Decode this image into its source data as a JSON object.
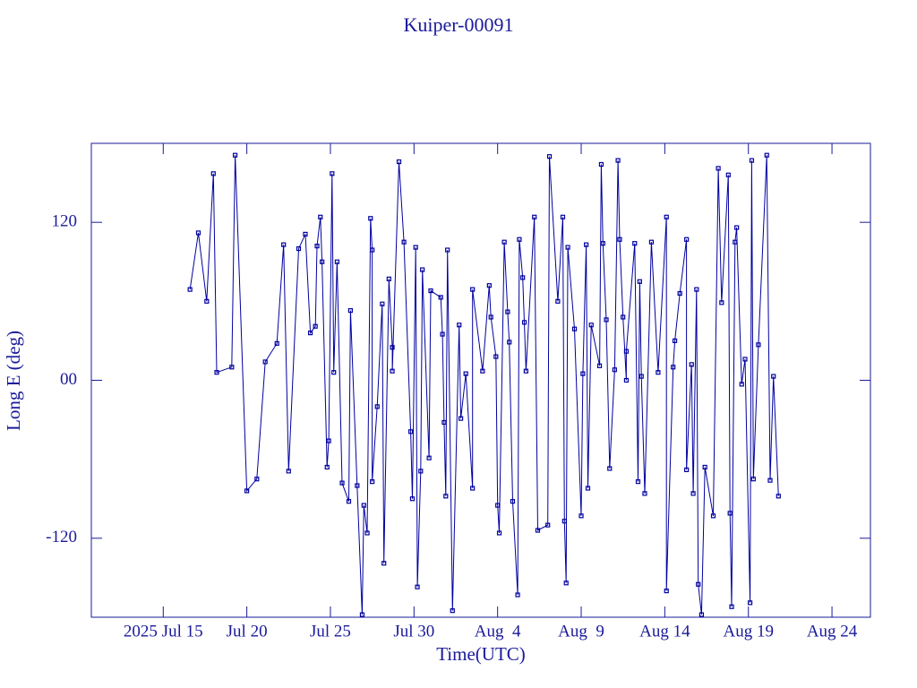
{
  "chart_data": {
    "type": "line",
    "title": "Kuiper-00091",
    "xlabel": "Time(UTC)",
    "ylabel": "Long E (deg)",
    "color": "#0000a0",
    "markers": true,
    "xlim": [
      10.7,
      57.3
    ],
    "xticks": [
      {
        "value": 15,
        "label": "2025 Jul 15"
      },
      {
        "value": 20,
        "label": "Jul 20"
      },
      {
        "value": 25,
        "label": "Jul 25"
      },
      {
        "value": 30,
        "label": "Jul 30"
      },
      {
        "value": 35,
        "label": "Aug  4"
      },
      {
        "value": 40,
        "label": "Aug  9"
      },
      {
        "value": 45,
        "label": "Aug 14"
      },
      {
        "value": 50,
        "label": "Aug 19"
      },
      {
        "value": 55,
        "label": "Aug 24"
      }
    ],
    "ylim": [
      -180,
      180
    ],
    "yticks": [
      -120,
      {
        "value": 0,
        "label": "00"
      },
      120
    ],
    "x": [
      16.6,
      17.1,
      17.6,
      18.0,
      18.2,
      19.1,
      19.3,
      20.0,
      20.6,
      21.1,
      21.8,
      22.2,
      22.5,
      23.1,
      23.5,
      23.8,
      24.1,
      24.2,
      24.4,
      24.5,
      24.8,
      24.9,
      25.1,
      25.2,
      25.4,
      25.7,
      26.1,
      26.2,
      26.6,
      26.9,
      27.0,
      27.2,
      27.4,
      27.5,
      27.5,
      27.8,
      28.1,
      28.2,
      28.5,
      28.7,
      28.7,
      29.1,
      29.4,
      29.8,
      29.9,
      30.1,
      30.2,
      30.4,
      30.5,
      30.9,
      31.0,
      31.6,
      31.7,
      31.8,
      31.9,
      32.0,
      32.3,
      32.7,
      32.8,
      33.1,
      33.5,
      33.5,
      34.1,
      34.5,
      34.6,
      34.9,
      35.0,
      35.1,
      35.4,
      35.6,
      35.7,
      35.9,
      36.2,
      36.3,
      36.5,
      36.6,
      36.7,
      37.2,
      37.4,
      38.0,
      38.1,
      38.6,
      38.9,
      39.0,
      39.1,
      39.2,
      39.6,
      40.0,
      40.1,
      40.3,
      40.4,
      40.6,
      41.1,
      41.2,
      41.3,
      41.5,
      41.7,
      42.0,
      42.2,
      42.3,
      42.5,
      42.7,
      42.7,
      43.2,
      43.4,
      43.5,
      43.6,
      43.8,
      44.2,
      44.6,
      45.1,
      45.1,
      45.5,
      45.6,
      45.9,
      46.3,
      46.3,
      46.6,
      46.7,
      46.9,
      47.0,
      47.2,
      47.4,
      47.9,
      48.2,
      48.4,
      48.8,
      48.9,
      49.0,
      49.2,
      49.3,
      49.6,
      49.8,
      50.1,
      50.2,
      50.3,
      50.6,
      51.1,
      51.3,
      51.5,
      51.8
    ],
    "values": [
      69,
      112,
      60,
      157,
      6,
      10,
      171,
      -84,
      -75,
      14,
      28,
      103,
      -69,
      100,
      111,
      36,
      41,
      102,
      124,
      90,
      -66,
      -46,
      157,
      6,
      90,
      -78,
      -92,
      53,
      -80,
      -178,
      -95,
      -116,
      123,
      99,
      -77,
      -20,
      58,
      -139,
      77,
      25,
      7,
      166,
      105,
      -39,
      -90,
      101,
      -157,
      -69,
      84,
      -59,
      68,
      63,
      35,
      -32,
      -88,
      99,
      -175,
      42,
      -29,
      5,
      -82,
      69,
      7,
      72,
      48,
      18,
      -95,
      -116,
      105,
      52,
      29,
      -92,
      -163,
      107,
      78,
      44,
      7,
      124,
      -114,
      -110,
      170,
      60,
      124,
      -107,
      -154,
      101,
      39,
      -103,
      5,
      103,
      -82,
      42,
      11,
      164,
      104,
      46,
      -67,
      8,
      167,
      107,
      48,
      0,
      22,
      104,
      -77,
      75,
      3,
      -86,
      105,
      6,
      124,
      -160,
      10,
      30,
      66,
      107,
      -68,
      12,
      -86,
      69,
      -155,
      -178,
      -66,
      -103,
      161,
      59,
      156,
      -101,
      -172,
      105,
      116,
      -3,
      16,
      -169,
      167,
      -75,
      27,
      171,
      -76,
      3,
      -88
    ]
  }
}
